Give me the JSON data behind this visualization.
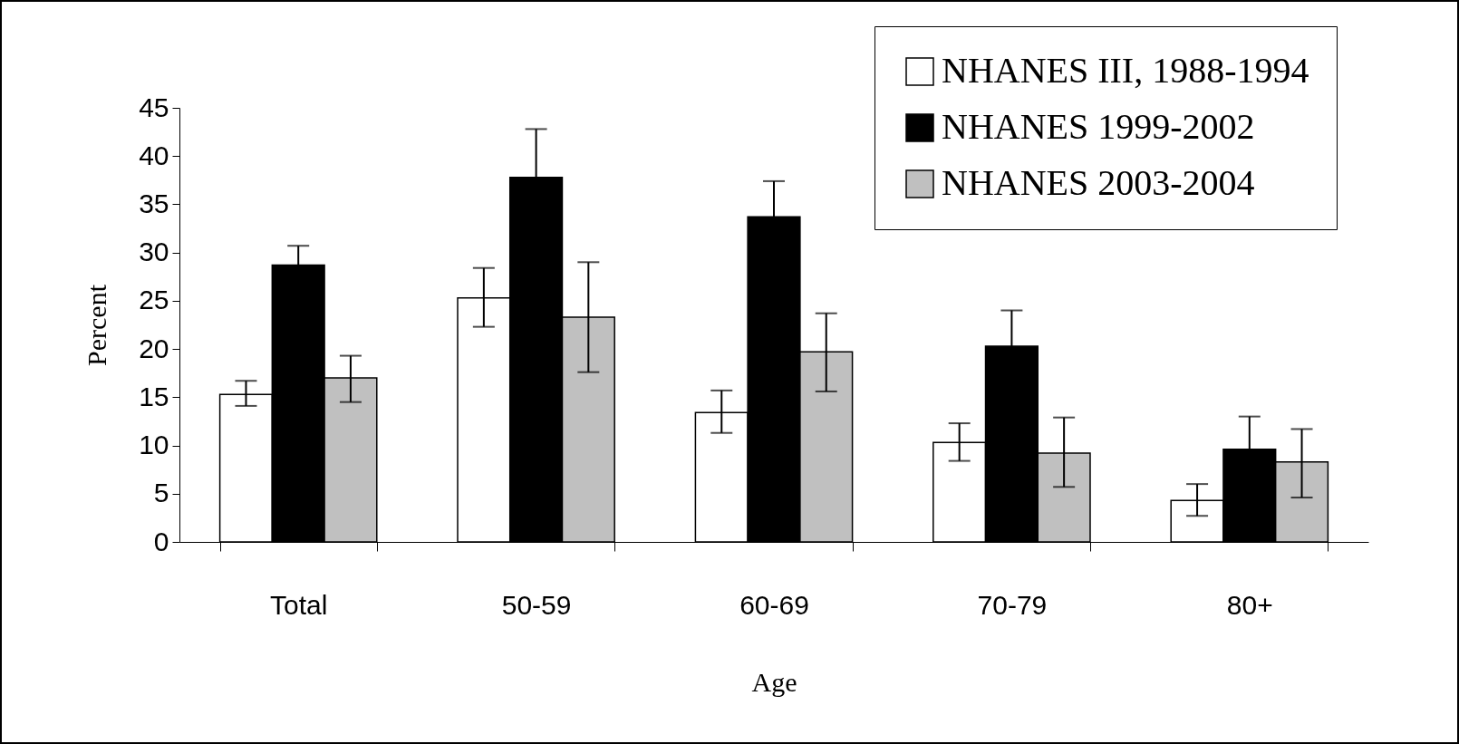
{
  "chart_data": {
    "type": "bar",
    "xlabel": "Age",
    "ylabel": "Percent",
    "categories": [
      "Total",
      "50-59",
      "60-69",
      "70-79",
      "80+"
    ],
    "series": [
      {
        "name": "NHANES III, 1988-1994",
        "color": "#ffffff",
        "values": [
          15.3,
          25.3,
          13.4,
          10.3,
          4.3
        ],
        "errors": [
          [
            14.1,
            16.7
          ],
          [
            22.3,
            28.4
          ],
          [
            11.3,
            15.7
          ],
          [
            8.4,
            12.3
          ],
          [
            2.7,
            6.0
          ]
        ]
      },
      {
        "name": "NHANES 1999-2002",
        "color": "#000000",
        "values": [
          28.7,
          37.8,
          33.7,
          20.3,
          9.6
        ],
        "errors": [
          2.0,
          5.0,
          3.7,
          3.7,
          3.4
        ]
      },
      {
        "name": "NHANES 2003-2004",
        "color": "#c0c0c0",
        "values": [
          17.0,
          23.3,
          19.7,
          9.2,
          8.3
        ],
        "errors": [
          [
            14.5,
            19.3
          ],
          [
            17.6,
            29.0
          ],
          [
            15.6,
            23.7
          ],
          [
            5.7,
            12.9
          ],
          [
            4.6,
            11.7
          ]
        ]
      }
    ],
    "ylim": [
      0,
      45
    ],
    "yticks": [
      0,
      5,
      10,
      15,
      20,
      25,
      30,
      35,
      40,
      45
    ],
    "grid": false,
    "legend": "top right"
  }
}
